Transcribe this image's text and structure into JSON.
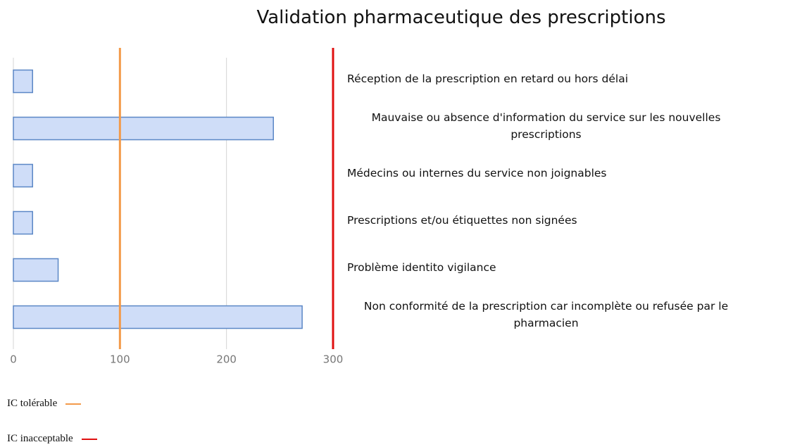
{
  "chart_data": {
    "type": "bar",
    "orientation": "horizontal",
    "title": "Validation pharmaceutique des prescriptions",
    "categories": [
      "Réception de la prescription en retard ou hors délai",
      "Mauvaise ou absence d'information du service sur les nouvelles prescriptions",
      "Médecins ou internes du service non joignables",
      "Prescriptions et/ou étiquettes non signées",
      "Problème identito vigilance",
      "Non conformité de la prescription car incomplète ou refusée par le pharmacien"
    ],
    "values": [
      18,
      244,
      18,
      18,
      42,
      271
    ],
    "color": "#cfddf8",
    "edge_color": "#5b87c6",
    "xlim": [
      0,
      300
    ],
    "xticks": [
      0,
      100,
      200,
      300
    ],
    "grid": true,
    "reference_lines": [
      {
        "name": "IC tolérable",
        "value": 100,
        "color": "#f39a4a"
      },
      {
        "name": "IC inacceptable",
        "value": 300,
        "color": "#e01010"
      }
    ],
    "legend": "bottom-left"
  }
}
